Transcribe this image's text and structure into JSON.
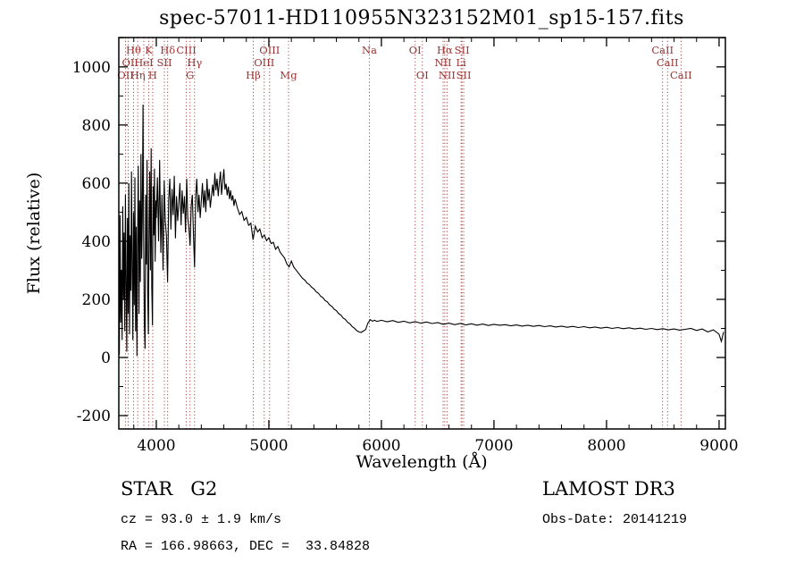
{
  "title": "spec-57011-HD110955N323152M01_sp15-157.fits",
  "annotations": {
    "object_type": "STAR   G2",
    "survey": "LAMOST DR3",
    "cz": "cz = 93.0 ± 1.9 km/s",
    "obs_date": "Obs-Date: 20141219",
    "coords": "RA = 166.98663, DEC =  33.84828"
  },
  "colors": {
    "marker": "#993333",
    "spectrum": "#000000",
    "axis": "#000000",
    "background": "#ffffff"
  },
  "chart_data": {
    "type": "line",
    "title": "spec-57011-HD110955N323152M01_sp15-157.fits",
    "xlabel": "Wavelength (Å)",
    "ylabel": "Flux (relative)",
    "xlim": [
      3667,
      9056
    ],
    "ylim": [
      -246,
      1101
    ],
    "x_ticks": [
      4000,
      5000,
      6000,
      7000,
      8000,
      9000
    ],
    "y_ticks": [
      -200,
      0,
      200,
      400,
      600,
      800,
      1000
    ],
    "x_minor_step": 200,
    "y_minor_step": 100,
    "grid": false,
    "legend": "none",
    "spectral_lines": [
      {
        "wavelength": 3727,
        "label": "OII",
        "row": 3
      },
      {
        "wavelength": 3750,
        "label": "OI",
        "row": 2
      },
      {
        "wavelength": 3798,
        "label": "Hθ",
        "row": 1
      },
      {
        "wavelength": 3835,
        "label": "Hη",
        "row": 3
      },
      {
        "wavelength": 3889,
        "label": "HeI",
        "row": 2
      },
      {
        "wavelength": 3933,
        "label": "K",
        "row": 1
      },
      {
        "wavelength": 3968,
        "label": "H",
        "row": 3
      },
      {
        "wavelength": 4072,
        "label": "SII",
        "row": 2
      },
      {
        "wavelength": 4101,
        "label": "Hδ",
        "row": 1
      },
      {
        "wavelength": 4267,
        "label": "CIII",
        "row": 1
      },
      {
        "wavelength": 4300,
        "label": "G",
        "row": 3
      },
      {
        "wavelength": 4340,
        "label": "Hγ",
        "row": 2
      },
      {
        "wavelength": 4861,
        "label": "Hβ",
        "row": 3
      },
      {
        "wavelength": 4959,
        "label": "OIII",
        "row": 2
      },
      {
        "wavelength": 5007,
        "label": "OIII",
        "row": 1
      },
      {
        "wavelength": 5175,
        "label": "Mg",
        "row": 3
      },
      {
        "wavelength": 5893,
        "label": "Na",
        "row": 1
      },
      {
        "wavelength": 6300,
        "label": "OI",
        "row": 1
      },
      {
        "wavelength": 6364,
        "label": "OI",
        "row": 3
      },
      {
        "wavelength": 6548,
        "label": "NII",
        "row": 2
      },
      {
        "wavelength": 6563,
        "label": "Hα",
        "row": 1
      },
      {
        "wavelength": 6583,
        "label": "NII",
        "row": 3
      },
      {
        "wavelength": 6708,
        "label": "Li",
        "row": 2
      },
      {
        "wavelength": 6716,
        "label": "SII",
        "row": 1
      },
      {
        "wavelength": 6731,
        "label": "SII",
        "row": 3
      },
      {
        "wavelength": 8498,
        "label": "CaII",
        "row": 1
      },
      {
        "wavelength": 8542,
        "label": "CaII",
        "row": 2
      },
      {
        "wavelength": 8662,
        "label": "CaII",
        "row": 3
      }
    ],
    "series": [
      {
        "name": "spectrum",
        "points": [
          [
            3672,
            10
          ],
          [
            3678,
            490
          ],
          [
            3684,
            120
          ],
          [
            3690,
            300
          ],
          [
            3696,
            60
          ],
          [
            3702,
            520
          ],
          [
            3708,
            200
          ],
          [
            3714,
            430
          ],
          [
            3720,
            90
          ],
          [
            3726,
            560
          ],
          [
            3732,
            250
          ],
          [
            3738,
            20
          ],
          [
            3744,
            480
          ],
          [
            3750,
            150
          ],
          [
            3756,
            600
          ],
          [
            3762,
            80
          ],
          [
            3768,
            420
          ],
          [
            3774,
            230
          ],
          [
            3780,
            640
          ],
          [
            3786,
            310
          ],
          [
            3792,
            60
          ],
          [
            3798,
            500
          ],
          [
            3804,
            180
          ],
          [
            3810,
            620
          ],
          [
            3816,
            90
          ],
          [
            3822,
            450
          ],
          [
            3828,
            5
          ],
          [
            3834,
            380
          ],
          [
            3840,
            660
          ],
          [
            3846,
            150
          ],
          [
            3852,
            540
          ],
          [
            3858,
            260
          ],
          [
            3864,
            700
          ],
          [
            3870,
            340
          ],
          [
            3876,
            480
          ],
          [
            3882,
            870
          ],
          [
            3888,
            420
          ],
          [
            3894,
            120
          ],
          [
            3900,
            30
          ],
          [
            3906,
            560
          ],
          [
            3912,
            320
          ],
          [
            3918,
            680
          ],
          [
            3924,
            210
          ],
          [
            3930,
            80
          ],
          [
            3936,
            470
          ],
          [
            3942,
            640
          ],
          [
            3948,
            300
          ],
          [
            3954,
            720
          ],
          [
            3960,
            240
          ],
          [
            3966,
            110
          ],
          [
            3972,
            590
          ],
          [
            3978,
            420
          ],
          [
            3984,
            650
          ],
          [
            3990,
            330
          ],
          [
            3996,
            540
          ],
          [
            4000,
            480
          ],
          [
            4010,
            620
          ],
          [
            4020,
            400
          ],
          [
            4030,
            680
          ],
          [
            4040,
            360
          ],
          [
            4050,
            560
          ],
          [
            4060,
            300
          ],
          [
            4070,
            610
          ],
          [
            4080,
            470
          ],
          [
            4090,
            420
          ],
          [
            4100,
            260
          ],
          [
            4110,
            540
          ],
          [
            4120,
            615
          ],
          [
            4130,
            440
          ],
          [
            4140,
            580
          ],
          [
            4150,
            490
          ],
          [
            4160,
            625
          ],
          [
            4170,
            410
          ],
          [
            4180,
            555
          ],
          [
            4190,
            470
          ],
          [
            4200,
            535
          ],
          [
            4210,
            600
          ],
          [
            4220,
            455
          ],
          [
            4230,
            575
          ],
          [
            4240,
            495
          ],
          [
            4250,
            555
          ],
          [
            4260,
            430
          ],
          [
            4270,
            615
          ],
          [
            4280,
            480
          ],
          [
            4290,
            445
          ],
          [
            4300,
            385
          ],
          [
            4310,
            520
          ],
          [
            4320,
            560
          ],
          [
            4330,
            430
          ],
          [
            4340,
            310
          ],
          [
            4350,
            555
          ],
          [
            4360,
            615
          ],
          [
            4370,
            500
          ],
          [
            4380,
            560
          ],
          [
            4390,
            480
          ],
          [
            4400,
            540
          ],
          [
            4410,
            600
          ],
          [
            4420,
            515
          ],
          [
            4430,
            575
          ],
          [
            4440,
            500
          ],
          [
            4450,
            615
          ],
          [
            4460,
            540
          ],
          [
            4470,
            580
          ],
          [
            4480,
            515
          ],
          [
            4490,
            555
          ],
          [
            4500,
            595
          ],
          [
            4510,
            555
          ],
          [
            4520,
            635
          ],
          [
            4530,
            575
          ],
          [
            4540,
            615
          ],
          [
            4550,
            555
          ],
          [
            4560,
            600
          ],
          [
            4570,
            640
          ],
          [
            4580,
            560
          ],
          [
            4590,
            605
          ],
          [
            4600,
            648
          ],
          [
            4610,
            578
          ],
          [
            4620,
            598
          ],
          [
            4630,
            558
          ],
          [
            4640,
            588
          ],
          [
            4650,
            545
          ],
          [
            4660,
            575
          ],
          [
            4670,
            540
          ],
          [
            4680,
            558
          ],
          [
            4690,
            522
          ],
          [
            4700,
            545
          ],
          [
            4720,
            515
          ],
          [
            4740,
            492
          ],
          [
            4760,
            502
          ],
          [
            4780,
            472
          ],
          [
            4800,
            482
          ],
          [
            4820,
            455
          ],
          [
            4840,
            462
          ],
          [
            4860,
            405
          ],
          [
            4880,
            452
          ],
          [
            4900,
            432
          ],
          [
            4920,
            442
          ],
          [
            4940,
            412
          ],
          [
            4960,
            422
          ],
          [
            4980,
            402
          ],
          [
            5000,
            412
          ],
          [
            5020,
            392
          ],
          [
            5040,
            396
          ],
          [
            5060,
            372
          ],
          [
            5080,
            382
          ],
          [
            5100,
            362
          ],
          [
            5120,
            352
          ],
          [
            5140,
            342
          ],
          [
            5160,
            322
          ],
          [
            5180,
            312
          ],
          [
            5200,
            332
          ],
          [
            5220,
            312
          ],
          [
            5240,
            302
          ],
          [
            5260,
            292
          ],
          [
            5280,
            282
          ],
          [
            5300,
            272
          ],
          [
            5320,
            266
          ],
          [
            5340,
            256
          ],
          [
            5360,
            251
          ],
          [
            5380,
            242
          ],
          [
            5400,
            236
          ],
          [
            5420,
            226
          ],
          [
            5440,
            221
          ],
          [
            5460,
            211
          ],
          [
            5480,
            206
          ],
          [
            5500,
            196
          ],
          [
            5520,
            191
          ],
          [
            5540,
            181
          ],
          [
            5560,
            176
          ],
          [
            5580,
            166
          ],
          [
            5600,
            161
          ],
          [
            5620,
            151
          ],
          [
            5640,
            146
          ],
          [
            5660,
            136
          ],
          [
            5680,
            131
          ],
          [
            5700,
            121
          ],
          [
            5720,
            116
          ],
          [
            5740,
            106
          ],
          [
            5760,
            101
          ],
          [
            5780,
            93
          ],
          [
            5800,
            88
          ],
          [
            5820,
            86
          ],
          [
            5840,
            91
          ],
          [
            5860,
            96
          ],
          [
            5880,
            118
          ],
          [
            5900,
            130
          ],
          [
            5920,
            125
          ],
          [
            5940,
            128
          ],
          [
            5960,
            124
          ],
          [
            6000,
            128
          ],
          [
            6050,
            123
          ],
          [
            6100,
            127
          ],
          [
            6150,
            121
          ],
          [
            6200,
            125
          ],
          [
            6250,
            119
          ],
          [
            6300,
            123
          ],
          [
            6350,
            118
          ],
          [
            6400,
            122
          ],
          [
            6450,
            117
          ],
          [
            6500,
            120
          ],
          [
            6550,
            114
          ],
          [
            6600,
            118
          ],
          [
            6650,
            113
          ],
          [
            6700,
            117
          ],
          [
            6750,
            112
          ],
          [
            6800,
            116
          ],
          [
            6850,
            111
          ],
          [
            6900,
            115
          ],
          [
            6950,
            110
          ],
          [
            7000,
            114
          ],
          [
            7050,
            111
          ],
          [
            7100,
            113
          ],
          [
            7150,
            109
          ],
          [
            7200,
            112
          ],
          [
            7250,
            108
          ],
          [
            7300,
            111
          ],
          [
            7350,
            107
          ],
          [
            7400,
            110
          ],
          [
            7450,
            106
          ],
          [
            7500,
            109
          ],
          [
            7550,
            105
          ],
          [
            7600,
            108
          ],
          [
            7650,
            104
          ],
          [
            7700,
            107
          ],
          [
            7750,
            103
          ],
          [
            7800,
            106
          ],
          [
            7850,
            102
          ],
          [
            7900,
            105
          ],
          [
            7950,
            101
          ],
          [
            8000,
            104
          ],
          [
            8050,
            100
          ],
          [
            8100,
            103
          ],
          [
            8150,
            99
          ],
          [
            8200,
            102
          ],
          [
            8250,
            98
          ],
          [
            8300,
            101
          ],
          [
            8350,
            97
          ],
          [
            8400,
            100
          ],
          [
            8450,
            96
          ],
          [
            8500,
            99
          ],
          [
            8550,
            95
          ],
          [
            8600,
            98
          ],
          [
            8650,
            94
          ],
          [
            8700,
            97
          ],
          [
            8750,
            100
          ],
          [
            8800,
            93
          ],
          [
            8850,
            98
          ],
          [
            8900,
            88
          ],
          [
            8950,
            95
          ],
          [
            9000,
            80
          ],
          [
            9020,
            55
          ],
          [
            9040,
            88
          ]
        ]
      }
    ]
  }
}
